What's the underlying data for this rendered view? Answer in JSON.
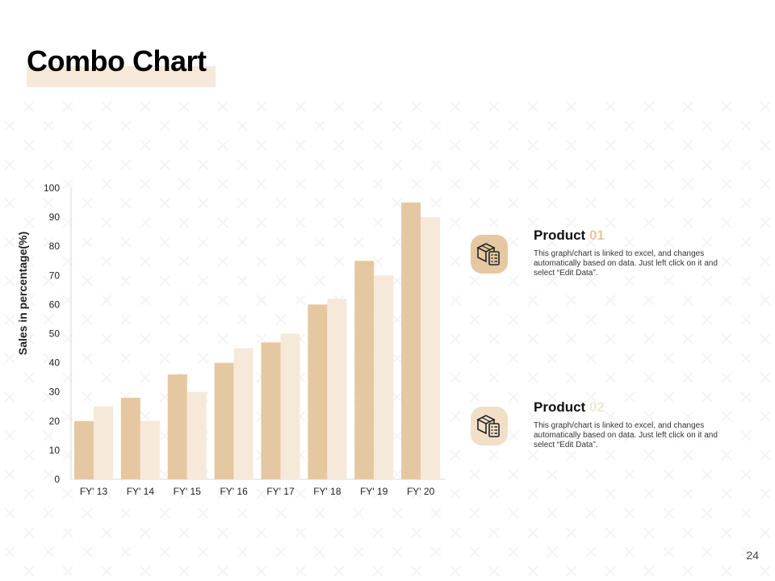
{
  "slide": {
    "title": "Combo Chart",
    "page_number": "24"
  },
  "chart_data": {
    "type": "bar",
    "categories": [
      "FY' 13",
      "FY' 14",
      "FY' 15",
      "FY' 16",
      "FY' 17",
      "FY' 18",
      "FY' 19",
      "FY' 20"
    ],
    "series": [
      {
        "values": [
          20,
          28,
          36,
          40,
          47,
          60,
          75,
          95
        ],
        "color": "#e5c8a1"
      },
      {
        "values": [
          25,
          20,
          30,
          45,
          50,
          62,
          70,
          90
        ],
        "color": "#f6e9da"
      }
    ],
    "ylabel": "Sales in percentage(%)",
    "xlabel": "",
    "ylim": [
      0,
      100
    ],
    "yticks": [
      0,
      10,
      20,
      30,
      40,
      50,
      60,
      70,
      80,
      90,
      100
    ],
    "grid": false,
    "legend": "right"
  },
  "products": [
    {
      "name": "Product",
      "number": "01",
      "icon": "package-checklist-icon",
      "description": "This graph/chart is linked to excel, and changes automatically based on data. Just left click on it and select “Edit Data”."
    },
    {
      "name": "Product",
      "number": "02",
      "icon": "package-checklist-icon",
      "description": "This graph/chart is linked to excel, and changes automatically based on data. Just left click on it and select “Edit Data”."
    }
  ]
}
